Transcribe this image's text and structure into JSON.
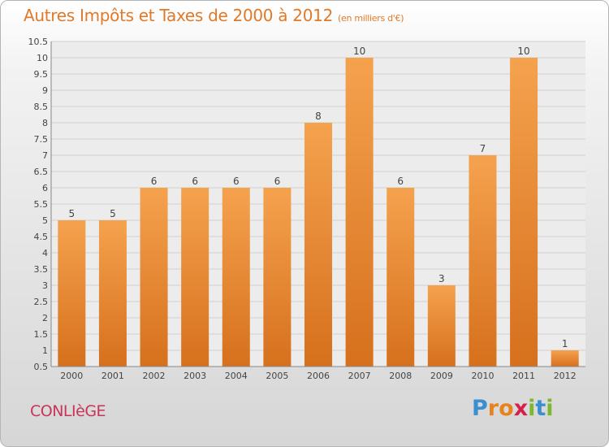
{
  "header": {
    "title": "Autres Impôts et Taxes de 2000 à 2012",
    "unit": "(en milliers d'€)"
  },
  "footer": {
    "commune": "CONLIèGE",
    "brand_letters": [
      {
        "char": "P",
        "color": "#3a8fd0"
      },
      {
        "char": "r",
        "color": "#e8821e"
      },
      {
        "char": "o",
        "color": "#e8821e"
      },
      {
        "char": "x",
        "color": "#d6204c"
      },
      {
        "char": "i",
        "color": "#7cb82f"
      },
      {
        "char": "t",
        "color": "#3a8fd0"
      },
      {
        "char": "i",
        "color": "#7cb82f"
      }
    ]
  },
  "colors": {
    "bar_top": "#f5a24e",
    "bar_bottom": "#d6701d",
    "title": "#e07a2a"
  },
  "chart_data": {
    "type": "bar",
    "categories": [
      "2000",
      "2001",
      "2002",
      "2003",
      "2004",
      "2005",
      "2006",
      "2007",
      "2008",
      "2009",
      "2010",
      "2011",
      "2012"
    ],
    "values": [
      5,
      5,
      6,
      6,
      6,
      6,
      8,
      10,
      6,
      3,
      7,
      10,
      1
    ],
    "ylim": [
      0.5,
      10.5
    ],
    "yticks": [
      "0.5",
      "1",
      "1.5",
      "2",
      "2.5",
      "3",
      "3.5",
      "4",
      "4.5",
      "5",
      "5.5",
      "6",
      "6.5",
      "7",
      "7.5",
      "8",
      "8.5",
      "9",
      "9.5",
      "10",
      "10.5"
    ],
    "grid": true,
    "legend": "none"
  }
}
